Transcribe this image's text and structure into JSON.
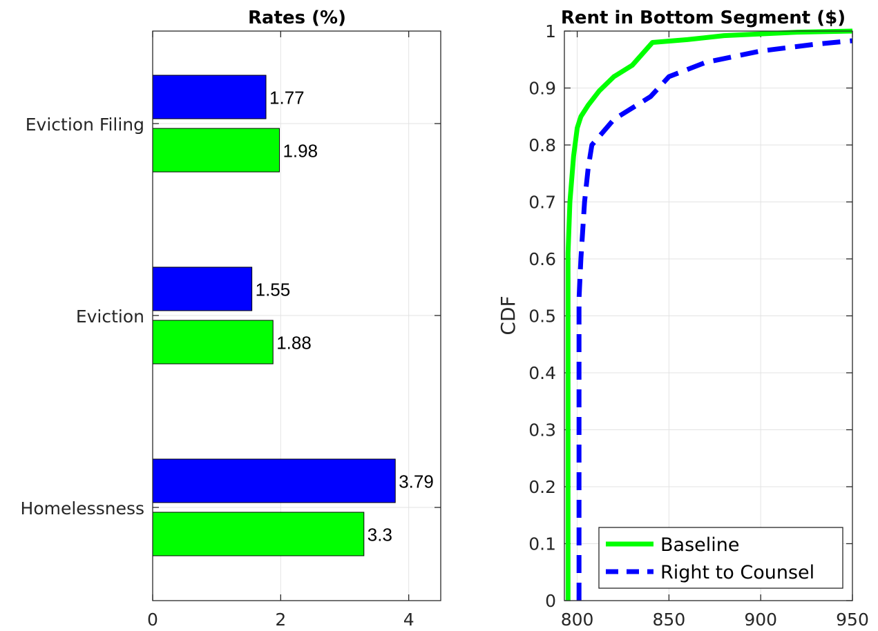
{
  "chart_data": [
    {
      "type": "bar",
      "orientation": "horizontal",
      "title": "Rates (%)",
      "categories": [
        "Eviction Filing",
        "Eviction",
        "Homelessness"
      ],
      "series": [
        {
          "color": "#0000ff",
          "values": [
            1.77,
            1.55,
            3.79
          ]
        },
        {
          "color": "#00ff00",
          "values": [
            1.98,
            1.88,
            3.3
          ]
        }
      ],
      "data_labels": [
        [
          "1.77",
          "1.98"
        ],
        [
          "1.55",
          "1.88"
        ],
        [
          "3.79",
          "3.3"
        ]
      ],
      "xlim": [
        0,
        4.5
      ],
      "xticks": [
        "0",
        "2",
        "4"
      ],
      "grid": true
    },
    {
      "type": "line",
      "title": "Rent in Bottom Segment ($)",
      "ylabel": "CDF",
      "xlim": [
        793,
        950
      ],
      "ylim": [
        0,
        1
      ],
      "xticks": [
        "800",
        "850",
        "900",
        "950"
      ],
      "yticks": [
        "0",
        "0.1",
        "0.2",
        "0.3",
        "0.4",
        "0.5",
        "0.6",
        "0.7",
        "0.8",
        "0.9",
        "1"
      ],
      "grid": true,
      "legend_position": "bottom-right",
      "series": [
        {
          "name": "Baseline",
          "color": "#00ff00",
          "style": "solid",
          "x": [
            795,
            795,
            796,
            798,
            800,
            802,
            806,
            812,
            820,
            830,
            841,
            860,
            880,
            900,
            920,
            950
          ],
          "y": [
            0,
            0.61,
            0.7,
            0.78,
            0.83,
            0.85,
            0.87,
            0.895,
            0.92,
            0.94,
            0.98,
            0.985,
            0.992,
            0.995,
            0.998,
            1.0
          ]
        },
        {
          "name": "Right to Counsel",
          "color": "#0000ff",
          "style": "dashed",
          "x": [
            801,
            801,
            802,
            804,
            806,
            808,
            812,
            820,
            830,
            840,
            850,
            870,
            900,
            930,
            950
          ],
          "y": [
            0,
            0.53,
            0.6,
            0.7,
            0.76,
            0.8,
            0.815,
            0.845,
            0.865,
            0.885,
            0.92,
            0.945,
            0.965,
            0.977,
            0.983
          ]
        }
      ]
    }
  ]
}
